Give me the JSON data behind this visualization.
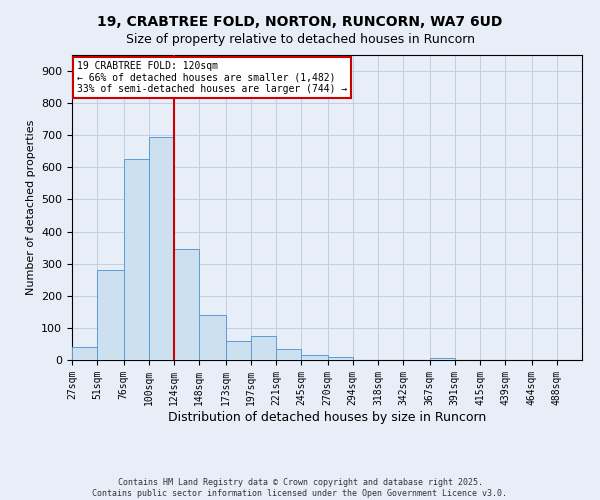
{
  "title1": "19, CRABTREE FOLD, NORTON, RUNCORN, WA7 6UD",
  "title2": "Size of property relative to detached houses in Runcorn",
  "xlabel": "Distribution of detached houses by size in Runcorn",
  "ylabel": "Number of detached properties",
  "bins": [
    27,
    51,
    76,
    100,
    124,
    148,
    173,
    197,
    221,
    245,
    270,
    294,
    318,
    342,
    367,
    391,
    415,
    439,
    464,
    488,
    512
  ],
  "counts": [
    40,
    280,
    625,
    695,
    345,
    140,
    60,
    75,
    35,
    15,
    10,
    0,
    0,
    0,
    5,
    0,
    0,
    0,
    0,
    0
  ],
  "bar_color": "#cce0f0",
  "bar_edge_color": "#5b9bd5",
  "vline_x": 124,
  "vline_color": "#cc0000",
  "annotation_text": "19 CRABTREE FOLD: 120sqm\n← 66% of detached houses are smaller (1,482)\n33% of semi-detached houses are larger (744) →",
  "annotation_box_color": "#ffffff",
  "annotation_box_edge": "#cc0000",
  "ylim": [
    0,
    950
  ],
  "yticks": [
    0,
    100,
    200,
    300,
    400,
    500,
    600,
    700,
    800,
    900
  ],
  "footer1": "Contains HM Land Registry data © Crown copyright and database right 2025.",
  "footer2": "Contains public sector information licensed under the Open Government Licence v3.0.",
  "bg_color": "#e8eef8",
  "grid_color": "#c0cfe0",
  "title1_fontsize": 10,
  "title2_fontsize": 9,
  "xlabel_fontsize": 9,
  "ylabel_fontsize": 8,
  "tick_fontsize": 7,
  "footer_fontsize": 6,
  "annot_fontsize": 7
}
